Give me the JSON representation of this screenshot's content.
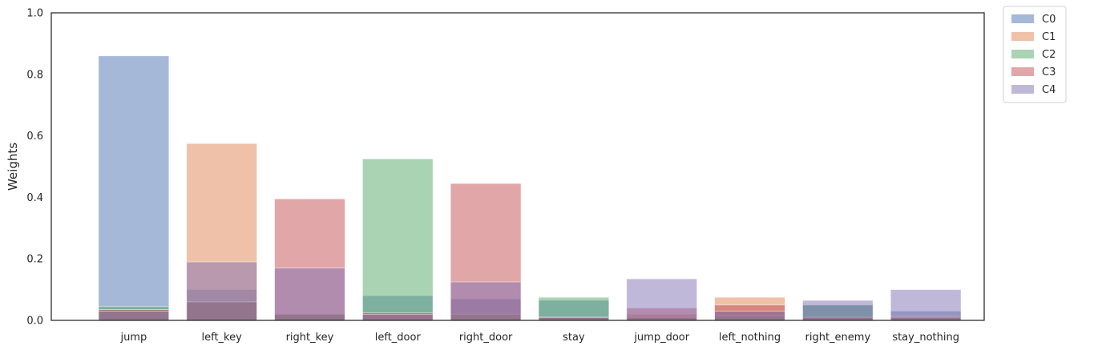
{
  "chart_data": {
    "type": "bar",
    "title": "",
    "xlabel": "",
    "ylabel": "Weights",
    "ylim": [
      0,
      1
    ],
    "yticks": [
      "0.0",
      "0.2",
      "0.4",
      "0.6",
      "0.8",
      "1.0"
    ],
    "grid": false,
    "legend_position": "outside-top-right",
    "overlay": true,
    "bar_alpha": 0.5,
    "categories": [
      "jump",
      "left_key",
      "right_key",
      "left_door",
      "right_door",
      "stay",
      "jump_door",
      "left_nothing",
      "right_enemy",
      "stay_nothing"
    ],
    "series": [
      {
        "name": "C0",
        "color": "#4c72b0",
        "values": [
          0.86,
          0.1,
          0.02,
          0.08,
          0.07,
          0.065,
          0.01,
          0.03,
          0.05,
          0.03
        ]
      },
      {
        "name": "C1",
        "color": "#dd8452",
        "values": [
          0.035,
          0.575,
          0.02,
          0.02,
          0.02,
          0.01,
          0.02,
          0.075,
          0.01,
          0.015
        ]
      },
      {
        "name": "C2",
        "color": "#55a868",
        "values": [
          0.045,
          0.06,
          0.02,
          0.525,
          0.02,
          0.075,
          0.01,
          0.015,
          0.05,
          0.01
        ]
      },
      {
        "name": "C3",
        "color": "#c44e52",
        "values": [
          0.035,
          0.06,
          0.395,
          0.025,
          0.445,
          0.01,
          0.04,
          0.05,
          0.01,
          0.01
        ]
      },
      {
        "name": "C4",
        "color": "#8172b3",
        "values": [
          0.03,
          0.19,
          0.17,
          0.02,
          0.125,
          0.01,
          0.135,
          0.03,
          0.065,
          0.1
        ]
      }
    ]
  }
}
